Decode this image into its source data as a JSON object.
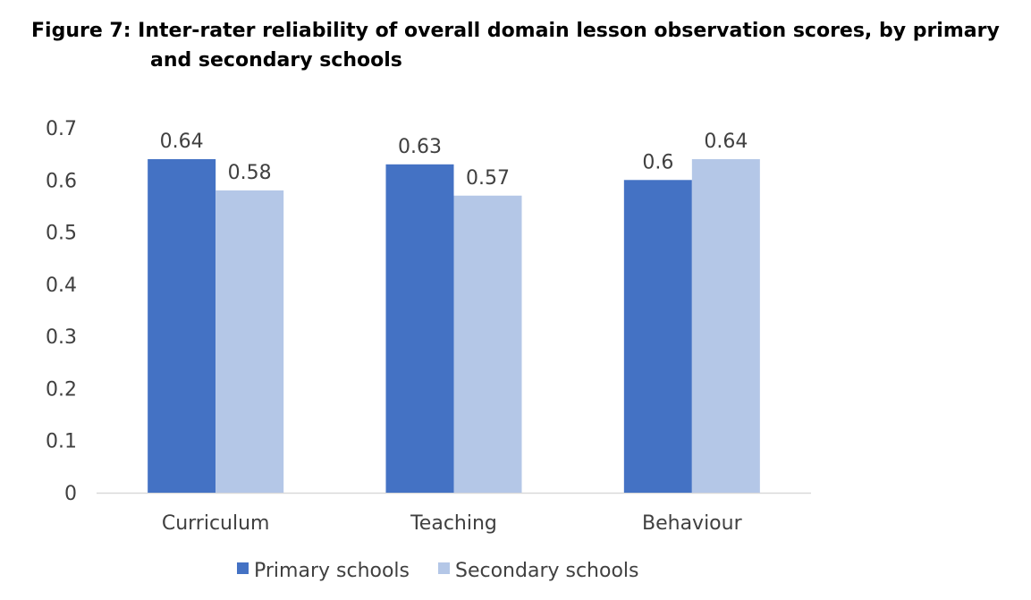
{
  "title_line1": "Figure 7: Inter-rater reliability of overall domain lesson observation scores, by primary",
  "title_line2": "and secondary schools",
  "chart_data": {
    "type": "bar",
    "title": "Figure 7: Inter-rater reliability of overall domain lesson observation scores, by primary and secondary schools",
    "xlabel": "",
    "ylabel": "",
    "categories": [
      "Curriculum",
      "Teaching",
      "Behaviour"
    ],
    "series": [
      {
        "name": "Primary schools",
        "values": [
          0.64,
          0.63,
          0.6
        ],
        "labels": [
          "0.64",
          "0.63",
          "0.6"
        ],
        "color": "#4472c4"
      },
      {
        "name": "Secondary schools",
        "values": [
          0.58,
          0.57,
          0.64
        ],
        "labels": [
          "0.58",
          "0.57",
          "0.64"
        ],
        "color": "#b4c7e7"
      }
    ],
    "ylim": [
      0,
      0.7
    ],
    "yticks": [
      "0",
      "0.1",
      "0.2",
      "0.3",
      "0.4",
      "0.5",
      "0.6",
      "0.7"
    ],
    "grid": false,
    "legend": "bottom"
  }
}
